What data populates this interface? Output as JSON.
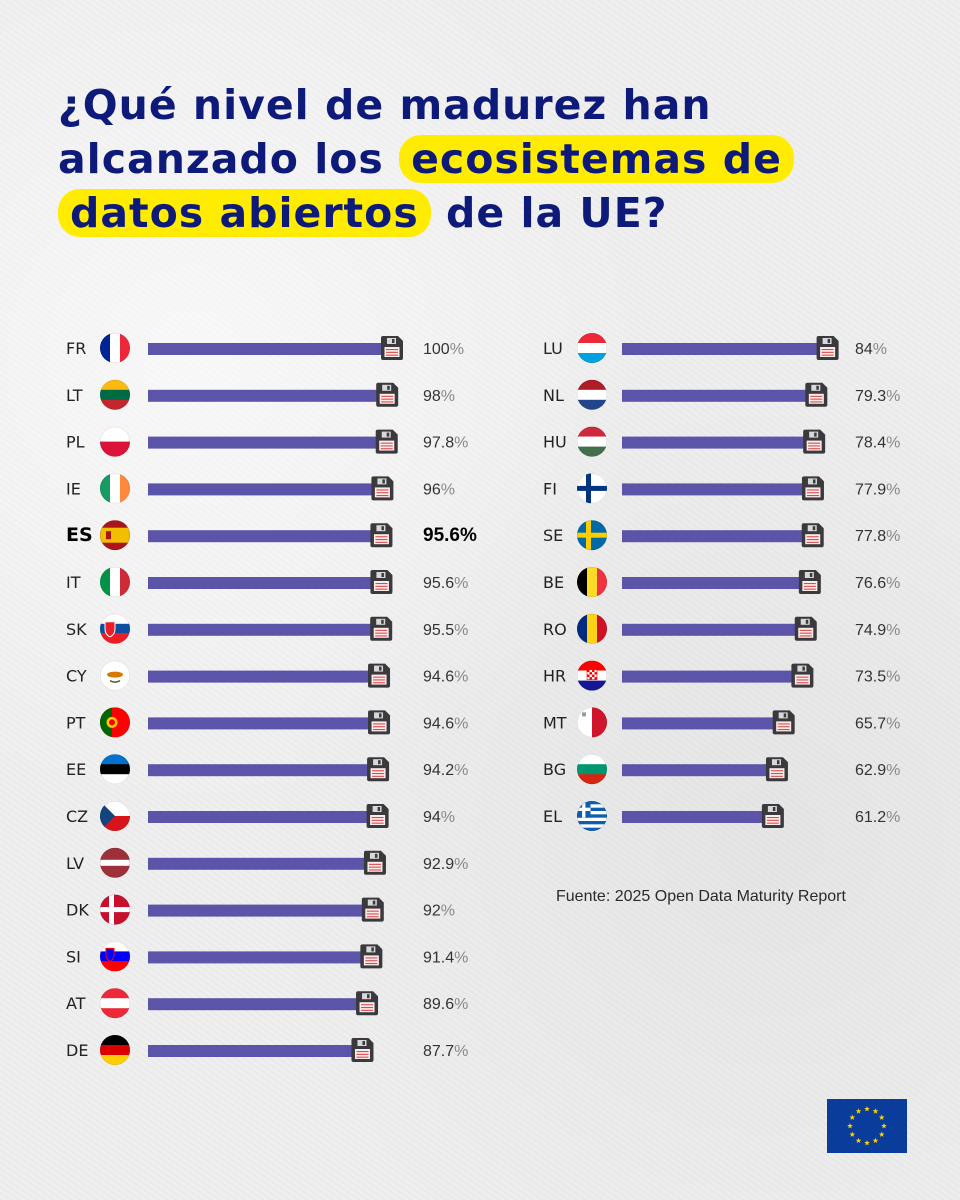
{
  "title": {
    "part1": "¿Qué nivel de madurez han alcanzado los ",
    "highlight": "ecosistemas de datos abiertos",
    "part2": " de la UE?"
  },
  "source": "Fuente: 2025 Open Data Maturity Report",
  "colors": {
    "bar": "#5b54a8",
    "title": "#0d1a7a",
    "highlight": "#ffec00",
    "eu_blue": "#0a3d9b",
    "eu_star": "#ffd500"
  },
  "chart_data": {
    "type": "bar",
    "orientation": "horizontal",
    "title": "¿Qué nivel de madurez han alcanzado los ecosistemas de datos abiertos de la UE?",
    "unit": "%",
    "xlim": [
      0,
      100
    ],
    "highlighted": "ES",
    "columns": [
      {
        "categories": [
          "FR",
          "LT",
          "PL",
          "IE",
          "ES",
          "IT",
          "SK",
          "CY",
          "PT",
          "EE",
          "CZ",
          "LV",
          "DK",
          "SI",
          "AT",
          "DE"
        ],
        "values": [
          100,
          98,
          97.8,
          96,
          95.6,
          95.6,
          95.5,
          94.6,
          94.6,
          94.2,
          94,
          92.9,
          92,
          91.4,
          89.6,
          87.7
        ]
      },
      {
        "categories": [
          "LU",
          "NL",
          "HU",
          "FI",
          "SE",
          "BE",
          "RO",
          "HR",
          "MT",
          "BG",
          "EL"
        ],
        "values": [
          84,
          79.3,
          78.4,
          77.9,
          77.8,
          76.6,
          74.9,
          73.5,
          65.7,
          62.9,
          61.2
        ]
      }
    ]
  }
}
